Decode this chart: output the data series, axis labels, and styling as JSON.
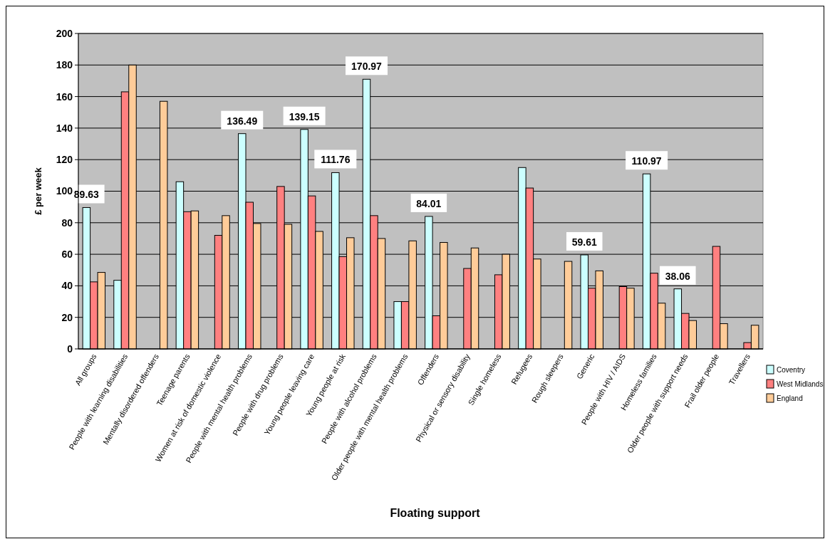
{
  "chart_data": {
    "type": "bar",
    "xlabel": "Floating support",
    "ylabel": "£ per week",
    "categories": [
      "All groups",
      "People with learning disabilities",
      "Mentally disordered offenders",
      "Teenage parents",
      "Women at risk of domestic violence",
      "People with mental health problems",
      "People with drug problems",
      "Young people leaving care",
      "Young people at risk",
      "People with alcohol problems",
      "Older people with mental health problems",
      "Offenders",
      "Physical or sensory disability",
      "Single homeless",
      "Refugees",
      "Rough sleepers",
      "Generic",
      "People with HIV / AIDS",
      "Homeless families",
      "Older people with support needs",
      "Frail older people",
      "Travellers"
    ],
    "series": [
      {
        "name": "Coventry",
        "color": "#ccffff",
        "values": [
          89.63,
          43.5,
          null,
          106,
          null,
          136.49,
          null,
          139.15,
          111.76,
          170.97,
          30,
          84.01,
          null,
          null,
          115,
          null,
          59.61,
          null,
          110.97,
          38.06,
          null,
          null
        ],
        "value_labels": [
          "89.63",
          null,
          null,
          null,
          null,
          "136.49",
          null,
          "139.15",
          "111.76",
          "170.97",
          null,
          "84.01",
          null,
          null,
          null,
          null,
          "59.61",
          null,
          "110.97",
          "38.06",
          null,
          null
        ]
      },
      {
        "name": "West Midlands",
        "color": "#ff8080",
        "values": [
          42.5,
          163,
          null,
          87,
          72,
          93,
          103,
          97,
          58.5,
          84.5,
          30,
          21,
          51,
          47,
          102,
          null,
          38.5,
          39.5,
          48,
          22.5,
          65,
          4
        ]
      },
      {
        "name": "England",
        "color": "#ffcc99",
        "values": [
          48.5,
          180,
          157,
          87.5,
          84.5,
          79.5,
          79,
          74.5,
          70.5,
          70,
          68.5,
          67.5,
          64,
          60,
          57,
          55.5,
          49.5,
          38.5,
          29,
          18,
          16,
          15
        ]
      }
    ],
    "ylim": [
      0,
      200
    ],
    "yticks": [
      0,
      20,
      40,
      60,
      80,
      100,
      120,
      140,
      160,
      180,
      200
    ],
    "grid": "y",
    "legend": "right"
  }
}
